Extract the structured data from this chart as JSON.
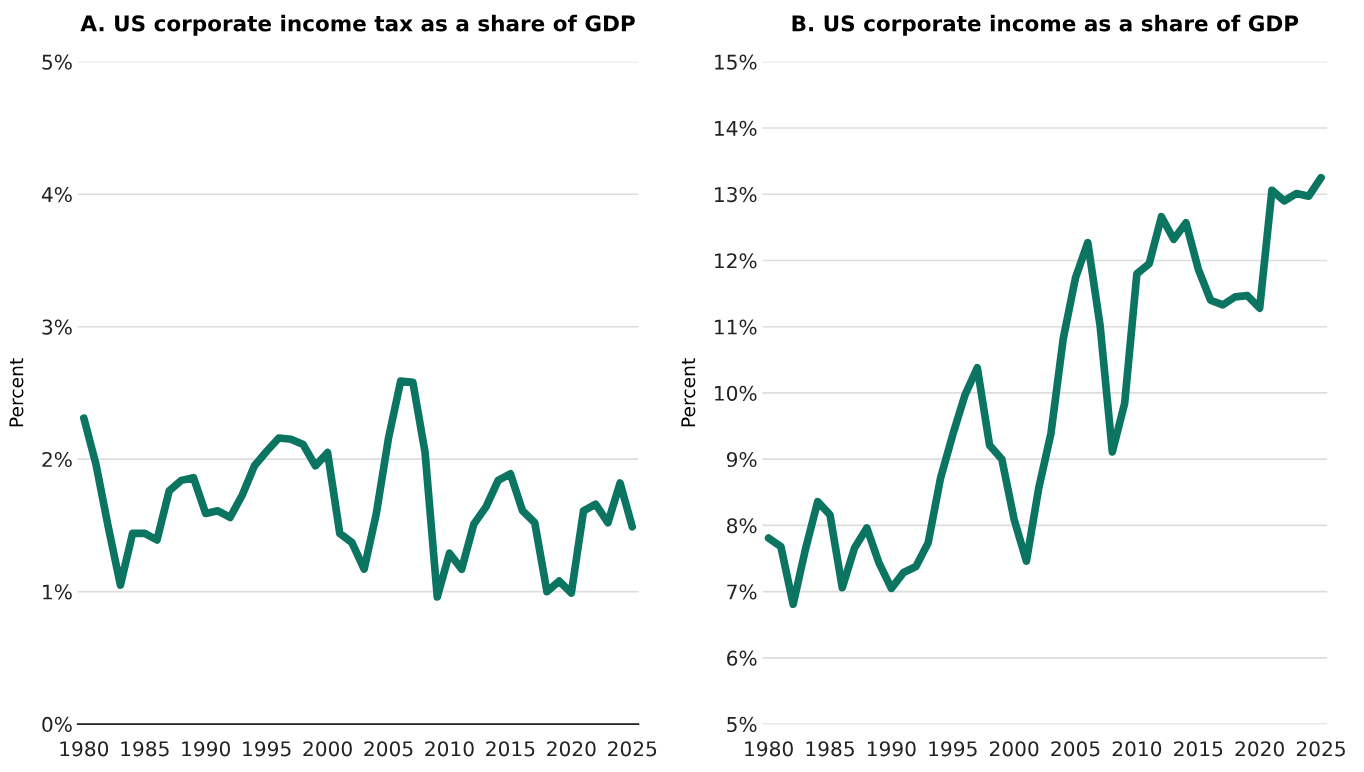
{
  "chart_data": [
    {
      "type": "line",
      "title": "A. US corporate income tax as a share of GDP",
      "ylabel": "Percent",
      "x": [
        1980,
        1981,
        1982,
        1983,
        1984,
        1985,
        1986,
        1987,
        1988,
        1989,
        1990,
        1991,
        1992,
        1993,
        1994,
        1995,
        1996,
        1997,
        1998,
        1999,
        2000,
        2001,
        2002,
        2003,
        2004,
        2005,
        2006,
        2007,
        2008,
        2009,
        2010,
        2011,
        2012,
        2013,
        2014,
        2015,
        2016,
        2017,
        2018,
        2019,
        2020,
        2021,
        2022,
        2023,
        2024,
        2025
      ],
      "series": [
        {
          "color": "#0b7561",
          "values": [
            2.31,
            1.96,
            1.49,
            1.05,
            1.44,
            1.44,
            1.39,
            1.76,
            1.84,
            1.86,
            1.59,
            1.61,
            1.56,
            1.73,
            1.95,
            2.06,
            2.16,
            2.15,
            2.11,
            1.95,
            2.05,
            1.44,
            1.37,
            1.17,
            1.59,
            2.16,
            2.59,
            2.58,
            2.05,
            0.96,
            1.29,
            1.17,
            1.51,
            1.64,
            1.84,
            1.89,
            1.61,
            1.52,
            1.0,
            1.08,
            0.99,
            1.61,
            1.66,
            1.52,
            1.82,
            1.49
          ]
        }
      ],
      "xlim": [
        1979.5,
        2025.5
      ],
      "xticks": [
        1980,
        1985,
        1990,
        1995,
        2000,
        2005,
        2010,
        2015,
        2020,
        2025
      ],
      "ylim": [
        0,
        5
      ],
      "yticks": [
        {
          "value": 0,
          "label": "0%"
        },
        {
          "value": 1,
          "label": "1%"
        },
        {
          "value": 2,
          "label": "2%"
        },
        {
          "value": 3,
          "label": "3%"
        },
        {
          "value": 4,
          "label": "4%"
        },
        {
          "value": 5,
          "label": "5%"
        }
      ],
      "grid": "y",
      "line_style": "solid"
    },
    {
      "type": "line",
      "title": "B. US corporate income as a share of GDP",
      "ylabel": "Percent",
      "x": [
        1980,
        1981,
        1982,
        1983,
        1984,
        1985,
        1986,
        1987,
        1988,
        1989,
        1990,
        1991,
        1992,
        1993,
        1994,
        1995,
        1996,
        1997,
        1998,
        1999,
        2000,
        2001,
        2002,
        2003,
        2004,
        2005,
        2006,
        2007,
        2008,
        2009,
        2010,
        2011,
        2012,
        2013,
        2014,
        2015,
        2016,
        2017,
        2018,
        2019,
        2020,
        2021,
        2022,
        2023,
        2024,
        2025
      ],
      "series": [
        {
          "color": "#0b7561",
          "values": [
            7.81,
            7.68,
            6.81,
            7.64,
            8.36,
            8.16,
            7.06,
            7.66,
            7.96,
            7.43,
            7.05,
            7.29,
            7.38,
            7.74,
            8.71,
            9.37,
            9.97,
            10.38,
            9.21,
            9.0,
            8.09,
            7.46,
            8.56,
            9.39,
            10.82,
            11.74,
            12.27,
            11.02,
            9.11,
            9.84,
            11.8,
            11.95,
            12.66,
            12.32,
            12.57,
            11.87,
            11.4,
            11.33,
            11.45,
            11.47,
            11.28,
            13.06,
            12.9,
            13.01,
            12.97,
            13.25
          ]
        }
      ],
      "xlim": [
        1979.5,
        2025.5
      ],
      "xticks": [
        1980,
        1985,
        1990,
        1995,
        2000,
        2005,
        2010,
        2015,
        2020,
        2025
      ],
      "ylim": [
        5,
        15
      ],
      "yticks": [
        {
          "value": 5,
          "label": "5%"
        },
        {
          "value": 6,
          "label": "6%"
        },
        {
          "value": 7,
          "label": "7%"
        },
        {
          "value": 8,
          "label": "8%"
        },
        {
          "value": 9,
          "label": "9%"
        },
        {
          "value": 10,
          "label": "10%"
        },
        {
          "value": 11,
          "label": "11%"
        },
        {
          "value": 12,
          "label": "12%"
        },
        {
          "value": 13,
          "label": "13%"
        },
        {
          "value": 14,
          "label": "14%"
        },
        {
          "value": 15,
          "label": "15%"
        }
      ],
      "grid": "y",
      "line_style": "solid"
    }
  ]
}
